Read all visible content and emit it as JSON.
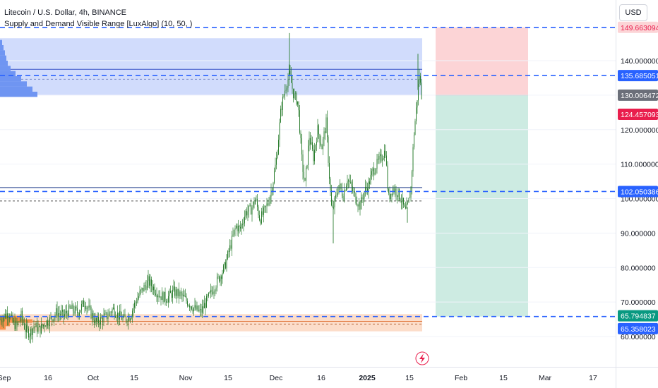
{
  "header": {
    "title": "Litecoin / U.S. Dollar, 4h, BINANCE",
    "indicator": "Supply and Demand Visible Range [LuxAlgo] (10, 50, )"
  },
  "currency": "USD",
  "colors": {
    "supply_zone": "#c9d6fb",
    "demand_zone": "#fcd9c4",
    "profile_blue": "#6f95f2",
    "profile_orange": "#f7924e",
    "candle": "#2a7d2e",
    "dash_blue": "#2962ff",
    "stop_zone": "#fcd4d6",
    "target_zone": "#cdebe2",
    "tag_blue": "#2962ff",
    "tag_red": "#e91e4d",
    "tag_grey": "#6b6f79",
    "tag_green": "#089981"
  },
  "chart_data": {
    "type": "candlestick",
    "symbol": "LTCUSD",
    "timeframe": "4h",
    "ylim": [
      56,
      150
    ],
    "y_ticks": [
      "140.000000",
      "130.000000",
      "120.000000",
      "110.000000",
      "100.000000",
      "90.000000",
      "80.000000",
      "70.000000",
      "60.000000"
    ],
    "x_ticks": [
      "Sep",
      "16",
      "Oct",
      "15",
      "Nov",
      "15",
      "Dec",
      "16",
      "2025",
      "15",
      "Feb",
      "15",
      "Mar",
      "17"
    ],
    "price_path": [
      [
        0,
        65
      ],
      [
        6,
        66
      ],
      [
        12,
        67
      ],
      [
        18,
        64
      ],
      [
        24,
        63
      ],
      [
        30,
        66
      ],
      [
        36,
        62
      ],
      [
        42,
        61
      ],
      [
        48,
        63
      ],
      [
        56,
        62
      ],
      [
        64,
        64
      ],
      [
        72,
        65
      ],
      [
        80,
        67
      ],
      [
        90,
        66
      ],
      [
        100,
        68
      ],
      [
        110,
        67
      ],
      [
        120,
        70
      ],
      [
        128,
        67
      ],
      [
        136,
        64
      ],
      [
        144,
        65
      ],
      [
        152,
        66
      ],
      [
        160,
        68
      ],
      [
        168,
        66
      ],
      [
        176,
        65
      ],
      [
        184,
        66
      ],
      [
        192,
        70
      ],
      [
        200,
        73
      ],
      [
        210,
        76
      ],
      [
        218,
        74
      ],
      [
        226,
        72
      ],
      [
        236,
        71
      ],
      [
        246,
        73
      ],
      [
        256,
        72
      ],
      [
        266,
        70
      ],
      [
        276,
        68
      ],
      [
        284,
        67
      ],
      [
        292,
        70
      ],
      [
        300,
        73
      ],
      [
        310,
        77
      ],
      [
        318,
        80
      ],
      [
        326,
        86
      ],
      [
        334,
        92
      ],
      [
        340,
        91
      ],
      [
        348,
        96
      ],
      [
        356,
        97
      ],
      [
        362,
        100
      ],
      [
        368,
        94
      ],
      [
        374,
        96
      ],
      [
        380,
        99
      ],
      [
        386,
        104
      ],
      [
        392,
        112
      ],
      [
        398,
        126
      ],
      [
        404,
        132
      ],
      [
        410,
        136
      ],
      [
        416,
        130
      ],
      [
        422,
        128
      ],
      [
        428,
        110
      ],
      [
        432,
        104
      ],
      [
        438,
        118
      ],
      [
        444,
        112
      ],
      [
        450,
        120
      ],
      [
        456,
        115
      ],
      [
        462,
        122
      ],
      [
        466,
        108
      ],
      [
        470,
        96
      ],
      [
        474,
        99
      ],
      [
        480,
        104
      ],
      [
        486,
        101
      ],
      [
        492,
        106
      ],
      [
        498,
        103
      ],
      [
        504,
        100
      ],
      [
        510,
        98
      ],
      [
        516,
        102
      ],
      [
        522,
        104
      ],
      [
        528,
        108
      ],
      [
        534,
        110
      ],
      [
        540,
        112
      ],
      [
        546,
        114
      ],
      [
        550,
        100
      ],
      [
        556,
        103
      ],
      [
        562,
        102
      ],
      [
        568,
        100
      ],
      [
        574,
        96
      ],
      [
        578,
        98
      ],
      [
        582,
        103
      ],
      [
        586,
        118
      ],
      [
        590,
        127
      ],
      [
        594,
        136
      ],
      [
        598,
        128
      ]
    ],
    "levels": [
      {
        "price": 149.663094,
        "label": "149.663094",
        "tag_color": "#e91e4d",
        "tag_bg": "#fcd4d6"
      },
      {
        "price": 135.685051,
        "label": "135.685051",
        "tag_color": "#2962ff"
      },
      {
        "price": 130.006472,
        "label": "130.006472",
        "tag_color": "#6b6f79"
      },
      {
        "price": 124.457093,
        "label": "124.457093",
        "tag_color": "#e91e4d"
      },
      {
        "price": 102.050386,
        "label": "102.050386",
        "tag_color": "#2962ff"
      },
      {
        "price": 65.794837,
        "label": "65.794837",
        "tag_color": "#089981"
      },
      {
        "price": 65.358023,
        "label": "65.358023",
        "tag_color": "#2962ff"
      }
    ],
    "zones": {
      "supply": [
        130.006472,
        146.5
      ],
      "demand": [
        61.5,
        66.5
      ],
      "position_stop": [
        130.006472,
        149.663094
      ],
      "position_target": [
        65.794837,
        130.006472
      ]
    }
  }
}
